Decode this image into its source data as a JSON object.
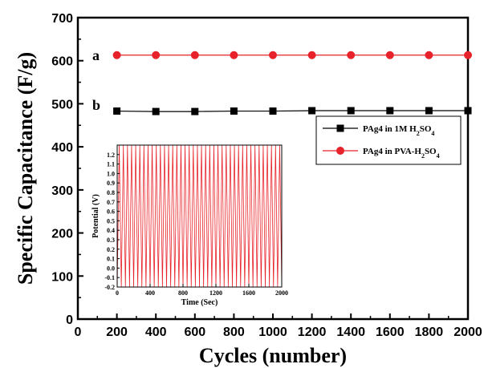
{
  "chart_data": [
    {
      "type": "line",
      "title": "",
      "xlabel": "Cycles (number)",
      "ylabel": "Specific Capacitance (F/g)",
      "xlim": [
        0,
        2000
      ],
      "ylim": [
        0,
        700
      ],
      "xticks": [
        "0",
        "200",
        "400",
        "600",
        "800",
        "1000",
        "1200",
        "1400",
        "1600",
        "1800",
        "2000"
      ],
      "yticks": [
        "0",
        "100",
        "200",
        "300",
        "400",
        "500",
        "600",
        "700"
      ],
      "grid": false,
      "legend_position": "center-right",
      "series": [
        {
          "name_parts": [
            "PAg4 in 1M H",
            "2",
            "SO",
            "4"
          ],
          "label": "b",
          "color": "#000000",
          "marker": "square",
          "x": [
            200,
            400,
            600,
            800,
            1000,
            1200,
            1400,
            1600,
            1800,
            2000
          ],
          "y": [
            483,
            482,
            482,
            483,
            483,
            484,
            484,
            484,
            484,
            484
          ]
        },
        {
          "name_parts": [
            "PAg4 in PVA-H",
            "2",
            "SO",
            "4"
          ],
          "label": "a",
          "color": "#e8222a",
          "marker": "circle",
          "x": [
            200,
            400,
            600,
            800,
            1000,
            1200,
            1400,
            1600,
            1800,
            2000
          ],
          "y": [
            613,
            613,
            613,
            613,
            613,
            613,
            613,
            613,
            613,
            613
          ]
        }
      ]
    },
    {
      "type": "line",
      "title": "",
      "xlabel": "Time (Sec)",
      "ylabel": "Potential (V)",
      "xlim": [
        0,
        2000
      ],
      "ylim": [
        -0.2,
        1.3
      ],
      "xticks": [
        "0",
        "400",
        "800",
        "1200",
        "1600",
        "2000"
      ],
      "yticks": [
        "-0.2",
        "-0.1",
        "0.0",
        "0.1",
        "0.2",
        "0.3",
        "0.4",
        "0.5",
        "0.6",
        "0.7",
        "0.8",
        "0.9",
        "1.0",
        "1.1",
        "1.2"
      ],
      "grid": false,
      "series": [
        {
          "name": "",
          "color": "#e8222a",
          "waveform": "triangular",
          "cycles": 40,
          "min": -0.2,
          "max": 1.3
        }
      ]
    }
  ]
}
